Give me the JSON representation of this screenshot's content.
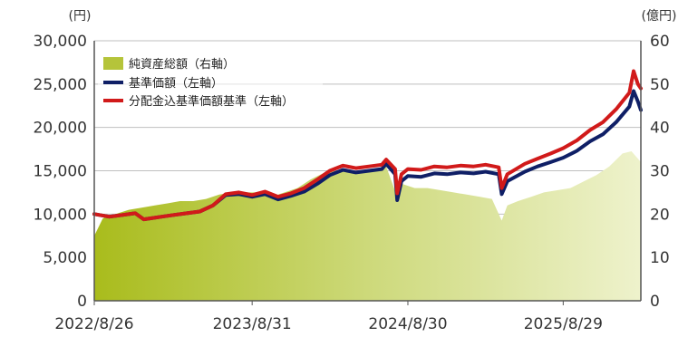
{
  "chart_data": {
    "type": "line",
    "left_unit": "(円)",
    "right_unit": "(億円)",
    "y_left": {
      "min": 0,
      "max": 30000,
      "ticks": [
        "0",
        "5,000",
        "10,000",
        "15,000",
        "20,000",
        "25,000",
        "30,000"
      ]
    },
    "y_right": {
      "min": 0,
      "max": 60,
      "ticks": [
        "0",
        "10",
        "20",
        "30",
        "40",
        "50",
        "60"
      ]
    },
    "x_labels": [
      "2022/8/26",
      "2023/8/31",
      "2024/8/30",
      "2025/8/29"
    ],
    "x_range": [
      "2022-08-26",
      "2026-02-27"
    ],
    "grid": "horizontal",
    "legend_position": "top-left",
    "series": [
      {
        "name": "純資産総額（右軸）",
        "axis": "right",
        "kind": "area",
        "color": "#b5c43a",
        "points": [
          [
            "2022-08-26",
            15
          ],
          [
            "2022-09-15",
            19
          ],
          [
            "2022-10-15",
            20
          ],
          [
            "2022-11-15",
            21
          ],
          [
            "2022-12-15",
            21.5
          ],
          [
            "2023-01-15",
            22
          ],
          [
            "2023-02-15",
            22.5
          ],
          [
            "2023-03-15",
            23
          ],
          [
            "2023-04-15",
            23
          ],
          [
            "2023-05-15",
            23.5
          ],
          [
            "2023-06-15",
            24.5
          ],
          [
            "2023-07-15",
            25
          ],
          [
            "2023-08-15",
            25
          ],
          [
            "2023-09-15",
            25
          ],
          [
            "2023-10-15",
            24
          ],
          [
            "2023-11-15",
            25
          ],
          [
            "2023-12-15",
            26
          ],
          [
            "2024-01-15",
            28
          ],
          [
            "2024-02-15",
            29.5
          ],
          [
            "2024-03-15",
            30
          ],
          [
            "2024-04-15",
            30
          ],
          [
            "2024-05-15",
            30
          ],
          [
            "2024-06-15",
            30.5
          ],
          [
            "2024-07-10",
            31
          ],
          [
            "2024-08-05",
            24
          ],
          [
            "2024-08-15",
            27
          ],
          [
            "2024-09-15",
            26
          ],
          [
            "2024-10-15",
            26
          ],
          [
            "2024-11-15",
            25.5
          ],
          [
            "2024-12-15",
            25
          ],
          [
            "2025-01-15",
            24.5
          ],
          [
            "2025-02-15",
            24
          ],
          [
            "2025-03-15",
            23.5
          ],
          [
            "2025-04-07",
            18.5
          ],
          [
            "2025-04-20",
            22
          ],
          [
            "2025-05-15",
            23
          ],
          [
            "2025-06-15",
            24
          ],
          [
            "2025-07-15",
            25
          ],
          [
            "2025-08-15",
            25.5
          ],
          [
            "2025-09-15",
            26
          ],
          [
            "2025-10-15",
            27.5
          ],
          [
            "2025-11-15",
            29
          ],
          [
            "2025-12-15",
            31
          ],
          [
            "2026-01-15",
            34
          ],
          [
            "2026-02-05",
            34.5
          ],
          [
            "2026-02-27",
            32
          ]
        ]
      },
      {
        "name": "基準価額（左軸）",
        "axis": "left",
        "kind": "line",
        "color": "#0f1f66",
        "points": [
          [
            "2022-08-26",
            10000
          ],
          [
            "2022-09-30",
            9700
          ],
          [
            "2022-10-31",
            9900
          ],
          [
            "2022-11-30",
            10100
          ],
          [
            "2022-12-20",
            9400
          ],
          [
            "2023-01-31",
            9700
          ],
          [
            "2023-02-28",
            9900
          ],
          [
            "2023-03-31",
            10100
          ],
          [
            "2023-04-30",
            10300
          ],
          [
            "2023-05-31",
            11000
          ],
          [
            "2023-06-30",
            12200
          ],
          [
            "2023-07-31",
            12300
          ],
          [
            "2023-08-31",
            12000
          ],
          [
            "2023-09-30",
            12300
          ],
          [
            "2023-10-31",
            11700
          ],
          [
            "2023-11-30",
            12100
          ],
          [
            "2023-12-31",
            12600
          ],
          [
            "2024-01-31",
            13500
          ],
          [
            "2024-02-29",
            14500
          ],
          [
            "2024-03-31",
            15100
          ],
          [
            "2024-04-30",
            14800
          ],
          [
            "2024-05-31",
            15000
          ],
          [
            "2024-06-30",
            15200
          ],
          [
            "2024-07-10",
            15800
          ],
          [
            "2024-07-31",
            14600
          ],
          [
            "2024-08-05",
            11600
          ],
          [
            "2024-08-15",
            13800
          ],
          [
            "2024-08-30",
            14400
          ],
          [
            "2024-09-30",
            14300
          ],
          [
            "2024-10-31",
            14700
          ],
          [
            "2024-11-30",
            14600
          ],
          [
            "2024-12-31",
            14800
          ],
          [
            "2025-01-31",
            14700
          ],
          [
            "2025-02-28",
            14900
          ],
          [
            "2025-03-31",
            14600
          ],
          [
            "2025-04-07",
            12300
          ],
          [
            "2025-04-20",
            13800
          ],
          [
            "2025-05-31",
            14900
          ],
          [
            "2025-06-30",
            15500
          ],
          [
            "2025-07-31",
            16000
          ],
          [
            "2025-08-29",
            16500
          ],
          [
            "2025-09-30",
            17300
          ],
          [
            "2025-10-31",
            18400
          ],
          [
            "2025-11-30",
            19200
          ],
          [
            "2025-12-31",
            20600
          ],
          [
            "2026-01-31",
            22400
          ],
          [
            "2026-02-10",
            24200
          ],
          [
            "2026-02-20",
            23000
          ],
          [
            "2026-02-27",
            22000
          ]
        ]
      },
      {
        "name": "分配金込基準価額基準（左軸）",
        "axis": "left",
        "kind": "line",
        "color": "#d11a1a",
        "points": [
          [
            "2022-08-26",
            10000
          ],
          [
            "2022-09-30",
            9700
          ],
          [
            "2022-10-31",
            9900
          ],
          [
            "2022-11-30",
            10100
          ],
          [
            "2022-12-20",
            9400
          ],
          [
            "2023-01-31",
            9700
          ],
          [
            "2023-02-28",
            9900
          ],
          [
            "2023-03-31",
            10100
          ],
          [
            "2023-04-30",
            10300
          ],
          [
            "2023-05-31",
            11000
          ],
          [
            "2023-06-30",
            12300
          ],
          [
            "2023-07-31",
            12500
          ],
          [
            "2023-08-31",
            12200
          ],
          [
            "2023-09-30",
            12600
          ],
          [
            "2023-10-31",
            12000
          ],
          [
            "2023-11-30",
            12400
          ],
          [
            "2023-12-31",
            13000
          ],
          [
            "2024-01-31",
            14000
          ],
          [
            "2024-02-29",
            15000
          ],
          [
            "2024-03-31",
            15600
          ],
          [
            "2024-04-30",
            15300
          ],
          [
            "2024-05-31",
            15500
          ],
          [
            "2024-06-30",
            15700
          ],
          [
            "2024-07-10",
            16300
          ],
          [
            "2024-07-31",
            15200
          ],
          [
            "2024-08-05",
            12400
          ],
          [
            "2024-08-15",
            14600
          ],
          [
            "2024-08-30",
            15200
          ],
          [
            "2024-09-30",
            15100
          ],
          [
            "2024-10-31",
            15500
          ],
          [
            "2024-11-30",
            15400
          ],
          [
            "2024-12-31",
            15600
          ],
          [
            "2025-01-31",
            15500
          ],
          [
            "2025-02-28",
            15700
          ],
          [
            "2025-03-31",
            15400
          ],
          [
            "2025-04-07",
            13000
          ],
          [
            "2025-04-20",
            14600
          ],
          [
            "2025-05-31",
            15800
          ],
          [
            "2025-06-30",
            16400
          ],
          [
            "2025-07-31",
            17000
          ],
          [
            "2025-08-29",
            17600
          ],
          [
            "2025-09-30",
            18500
          ],
          [
            "2025-10-31",
            19700
          ],
          [
            "2025-11-30",
            20600
          ],
          [
            "2025-12-31",
            22100
          ],
          [
            "2026-01-31",
            24000
          ],
          [
            "2026-02-10",
            26500
          ],
          [
            "2026-02-20",
            25000
          ],
          [
            "2026-02-27",
            24500
          ]
        ]
      }
    ]
  }
}
